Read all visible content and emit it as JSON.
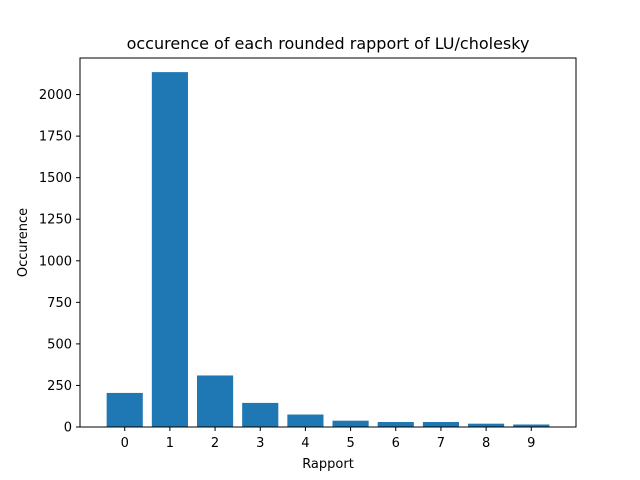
{
  "chart_data": {
    "type": "bar",
    "title": "occurence of each rounded rapport of LU/cholesky",
    "xlabel": "Rapport",
    "ylabel": "Occurence",
    "categories": [
      "0",
      "1",
      "2",
      "3",
      "4",
      "5",
      "6",
      "7",
      "8",
      "9"
    ],
    "values": [
      205,
      2135,
      310,
      145,
      75,
      38,
      30,
      30,
      20,
      15
    ],
    "ylim": [
      0,
      2220
    ],
    "yticks": [
      0,
      250,
      500,
      750,
      1000,
      1250,
      1500,
      1750,
      2000
    ],
    "bar_color": "#1f77b4",
    "grid": false,
    "legend": "none"
  }
}
